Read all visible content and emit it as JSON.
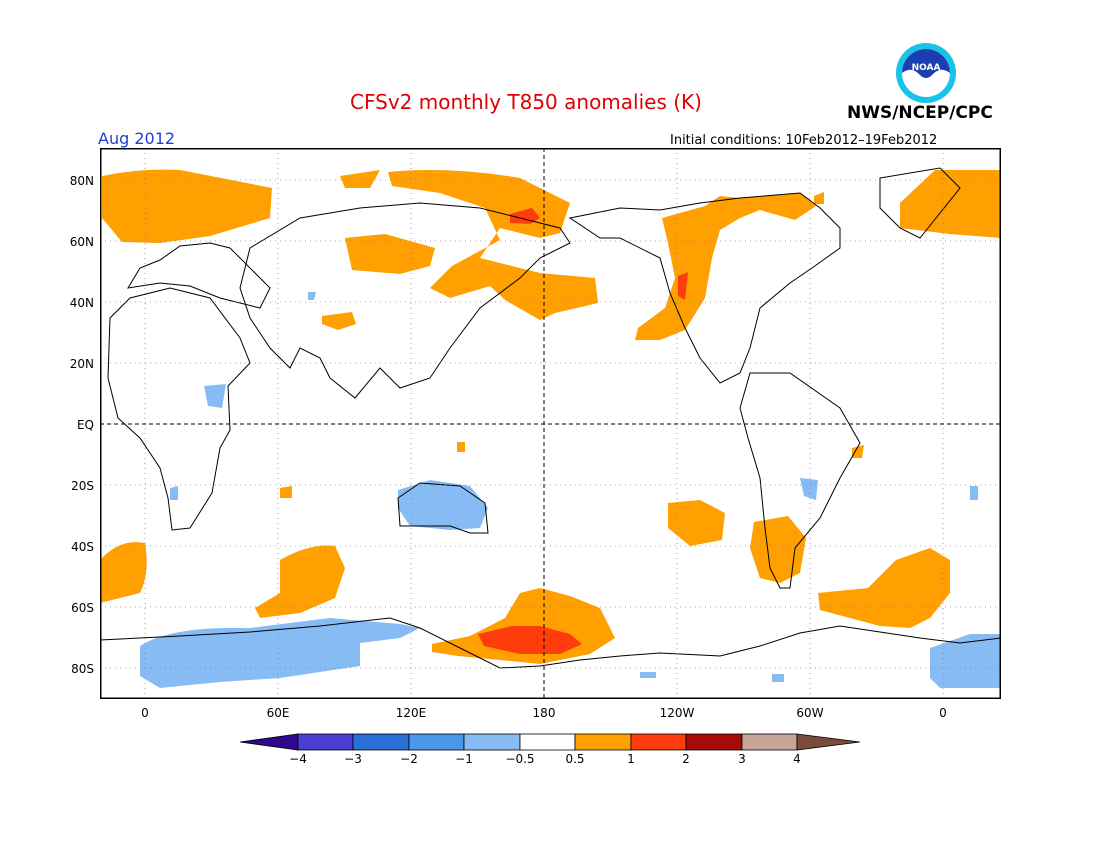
{
  "header": {
    "title": "CFSv2 monthly T850 anomalies (K)",
    "month": "Aug 2012",
    "initial_conditions": "Initial conditions: 10Feb2012–19Feb2012",
    "agency": "NWS/NCEP/CPC",
    "logo_text": "NOAA"
  },
  "axes": {
    "y_labels": [
      "80N",
      "60N",
      "40N",
      "20N",
      "EQ",
      "20S",
      "40S",
      "60S",
      "80S"
    ],
    "x_labels": [
      "0",
      "60E",
      "120E",
      "180",
      "120W",
      "60W",
      "0"
    ]
  },
  "colorbar": {
    "labels": [
      "−4",
      "−3",
      "−2",
      "−1",
      "−0.5",
      "0.5",
      "1",
      "2",
      "3",
      "4"
    ],
    "colors": [
      "#2d0a8c",
      "#4a3fd0",
      "#2a6fd6",
      "#4a96ea",
      "#86bcf3",
      "#ffffff",
      "#ff9f00",
      "#ff3c0c",
      "#a50b0b",
      "#c9a597",
      "#7a4a3a"
    ]
  },
  "colors": {
    "title": "#e00000",
    "month": "#1f3fd8",
    "positive_anomaly": "#ff9f00",
    "strong_positive": "#ff3c0c",
    "negative_anomaly": "#86bcf3"
  }
}
